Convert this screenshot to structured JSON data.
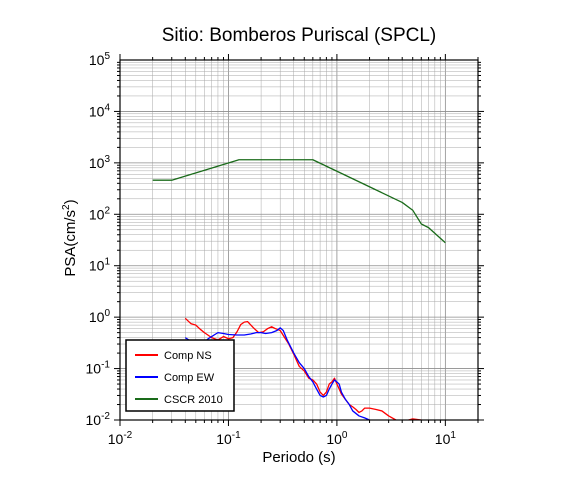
{
  "chart_data": {
    "type": "line",
    "title": "Sitio: Bomberos Puriscal (SPCL)",
    "xlabel": "Periodo (s)",
    "ylabel_main": "PSA(cm/s",
    "ylabel_sup": "2",
    "ylabel_close": ")",
    "x_scale": "log",
    "y_scale": "log",
    "xlim": [
      0.01,
      20
    ],
    "ylim": [
      0.01,
      100000
    ],
    "grid": true,
    "x_ticks": [
      {
        "value": 0.01,
        "base": "10",
        "exp": "-2"
      },
      {
        "value": 0.1,
        "base": "10",
        "exp": "-1"
      },
      {
        "value": 1,
        "base": "10",
        "exp": "0"
      },
      {
        "value": 10,
        "base": "10",
        "exp": "1"
      }
    ],
    "y_ticks": [
      {
        "value": 0.01,
        "base": "10",
        "exp": "-2"
      },
      {
        "value": 0.1,
        "base": "10",
        "exp": "-1"
      },
      {
        "value": 1,
        "base": "10",
        "exp": "0"
      },
      {
        "value": 10,
        "base": "10",
        "exp": "1"
      },
      {
        "value": 100,
        "base": "10",
        "exp": "2"
      },
      {
        "value": 1000,
        "base": "10",
        "exp": "3"
      },
      {
        "value": 10000,
        "base": "10",
        "exp": "4"
      },
      {
        "value": 100000,
        "base": "10",
        "exp": "5"
      }
    ],
    "legend_position": "bottom-left",
    "series": [
      {
        "name": "Comp NS",
        "color": "#ff0000",
        "points": [
          [
            0.04,
            0.95
          ],
          [
            0.045,
            0.75
          ],
          [
            0.05,
            0.7
          ],
          [
            0.055,
            0.58
          ],
          [
            0.06,
            0.5
          ],
          [
            0.07,
            0.4
          ],
          [
            0.08,
            0.36
          ],
          [
            0.09,
            0.42
          ],
          [
            0.1,
            0.38
          ],
          [
            0.11,
            0.4
          ],
          [
            0.12,
            0.52
          ],
          [
            0.13,
            0.72
          ],
          [
            0.14,
            0.8
          ],
          [
            0.15,
            0.82
          ],
          [
            0.17,
            0.62
          ],
          [
            0.19,
            0.5
          ],
          [
            0.21,
            0.52
          ],
          [
            0.23,
            0.6
          ],
          [
            0.25,
            0.65
          ],
          [
            0.27,
            0.6
          ],
          [
            0.3,
            0.55
          ],
          [
            0.33,
            0.4
          ],
          [
            0.36,
            0.3
          ],
          [
            0.4,
            0.19
          ],
          [
            0.45,
            0.11
          ],
          [
            0.5,
            0.09
          ],
          [
            0.55,
            0.065
          ],
          [
            0.6,
            0.06
          ],
          [
            0.65,
            0.05
          ],
          [
            0.7,
            0.035
          ],
          [
            0.75,
            0.03
          ],
          [
            0.8,
            0.035
          ],
          [
            0.85,
            0.05
          ],
          [
            0.9,
            0.055
          ],
          [
            0.95,
            0.065
          ],
          [
            1.0,
            0.05
          ],
          [
            1.05,
            0.04
          ],
          [
            1.1,
            0.032
          ],
          [
            1.2,
            0.025
          ],
          [
            1.3,
            0.02
          ],
          [
            1.4,
            0.018
          ],
          [
            1.5,
            0.016
          ],
          [
            1.6,
            0.014
          ],
          [
            1.7,
            0.015
          ],
          [
            1.8,
            0.017
          ],
          [
            2.0,
            0.017
          ],
          [
            2.3,
            0.016
          ],
          [
            2.6,
            0.015
          ],
          [
            3.0,
            0.012
          ],
          [
            3.5,
            0.01
          ],
          [
            4.2,
            0.0095
          ],
          [
            5.0,
            0.0105
          ],
          [
            6.0,
            0.01
          ]
        ]
      },
      {
        "name": "Comp EW",
        "color": "#0000ff",
        "points": [
          [
            0.04,
            0.4
          ],
          [
            0.045,
            0.34
          ],
          [
            0.05,
            0.3
          ],
          [
            0.055,
            0.28
          ],
          [
            0.06,
            0.32
          ],
          [
            0.065,
            0.38
          ],
          [
            0.07,
            0.42
          ],
          [
            0.075,
            0.46
          ],
          [
            0.08,
            0.5
          ],
          [
            0.09,
            0.48
          ],
          [
            0.1,
            0.46
          ],
          [
            0.12,
            0.45
          ],
          [
            0.14,
            0.45
          ],
          [
            0.16,
            0.47
          ],
          [
            0.18,
            0.5
          ],
          [
            0.2,
            0.5
          ],
          [
            0.22,
            0.48
          ],
          [
            0.25,
            0.5
          ],
          [
            0.28,
            0.55
          ],
          [
            0.3,
            0.62
          ],
          [
            0.32,
            0.55
          ],
          [
            0.35,
            0.35
          ],
          [
            0.4,
            0.2
          ],
          [
            0.45,
            0.13
          ],
          [
            0.5,
            0.1
          ],
          [
            0.55,
            0.07
          ],
          [
            0.6,
            0.055
          ],
          [
            0.65,
            0.04
          ],
          [
            0.7,
            0.03
          ],
          [
            0.75,
            0.028
          ],
          [
            0.8,
            0.03
          ],
          [
            0.85,
            0.04
          ],
          [
            0.9,
            0.05
          ],
          [
            0.95,
            0.06
          ],
          [
            1.0,
            0.055
          ],
          [
            1.05,
            0.05
          ],
          [
            1.1,
            0.035
          ],
          [
            1.2,
            0.025
          ],
          [
            1.3,
            0.02
          ],
          [
            1.4,
            0.015
          ],
          [
            1.6,
            0.012
          ],
          [
            1.8,
            0.011
          ],
          [
            2.0,
            0.01
          ],
          [
            2.2,
            0.0095
          ]
        ]
      },
      {
        "name": "CSCR 2010",
        "color": "#1a6b1a",
        "points": [
          [
            0.02,
            460
          ],
          [
            0.03,
            460
          ],
          [
            0.125,
            1150
          ],
          [
            0.6,
            1150
          ],
          [
            4.0,
            170
          ],
          [
            5.0,
            120
          ],
          [
            6.0,
            65
          ],
          [
            7.0,
            55
          ],
          [
            10.0,
            28
          ]
        ]
      }
    ]
  }
}
